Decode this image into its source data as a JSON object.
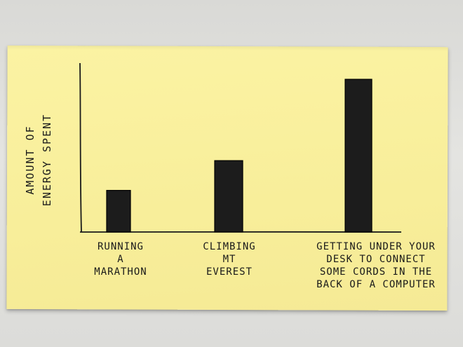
{
  "chart_data": {
    "type": "bar",
    "title": "",
    "ylabel": [
      "AMOUNT OF",
      "ENERGY SPENT"
    ],
    "xlabel": "",
    "ylim": [
      0,
      100
    ],
    "categories": [
      [
        "RUNNING",
        "A",
        "MARATHON"
      ],
      [
        "CLIMBING",
        "MT",
        "EVEREST"
      ],
      [
        "GETTING UNDER YOUR",
        "DESK TO CONNECT",
        "SOME CORDS IN THE",
        "BACK OF A COMPUTER"
      ]
    ],
    "values": [
      21,
      36,
      77
    ],
    "bar_color": "#1c1c1c",
    "grid": false
  }
}
